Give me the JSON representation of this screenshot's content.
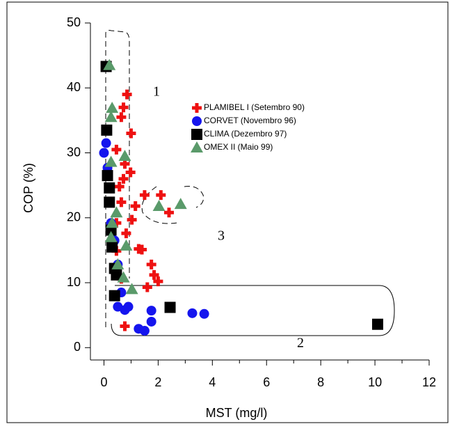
{
  "chart_data": {
    "type": "scatter",
    "xlabel": "MST (mg/l)",
    "ylabel": "COP (%)",
    "xlim": [
      -0.5,
      12
    ],
    "ylim": [
      -1.9,
      50
    ],
    "xticks": [
      0,
      2,
      4,
      6,
      8,
      10,
      12
    ],
    "xminorticks": [
      1,
      3,
      5,
      7,
      9,
      11
    ],
    "yticks": [
      0,
      10,
      20,
      30,
      40,
      50
    ],
    "annotations": [
      "1",
      "2",
      "3"
    ],
    "series": [
      {
        "name": "PLAMIBEL I (Setembro 90)",
        "color": "#ee1111",
        "marker": "plus",
        "x": [
          0.85,
          0.72,
          0.64,
          1.0,
          0.46,
          0.77,
          0.98,
          0.72,
          0.57,
          1.5,
          2.1,
          2.4,
          1.16,
          0.64,
          1.03,
          0.46,
          0.82,
          1.28,
          1.4,
          0.46,
          1.75,
          1.85,
          2.0,
          1.6,
          0.77,
          0.64
        ],
        "values": [
          39,
          37,
          35.5,
          33,
          30.5,
          28.3,
          27,
          26,
          24.8,
          23.5,
          23.5,
          20.8,
          21.8,
          22.4,
          19.7,
          19.2,
          17.6,
          15.2,
          15.1,
          14.9,
          12.8,
          11.2,
          10.2,
          9.3,
          3.3,
          10.6
        ]
      },
      {
        "name": "CORVET (Novembro 96)",
        "color": "#1515ee",
        "marker": "circle",
        "x": [
          0.08,
          0,
          0.13,
          0.26,
          0.39,
          0.51,
          0.64,
          0.51,
          0.77,
          1.75,
          1.75,
          1.28,
          1.5,
          3.26,
          3.7,
          0.9
        ],
        "values": [
          31.5,
          30,
          27.7,
          19.2,
          16.5,
          12.8,
          8.5,
          6.3,
          5.8,
          5.7,
          4,
          2.9,
          2.6,
          5.3,
          5.2,
          6.3
        ]
      },
      {
        "name": "CLIMA (Dezembro 97)",
        "color": "#000000",
        "marker": "square",
        "x": [
          0.08,
          0.1,
          0.13,
          0.2,
          0.2,
          0.26,
          0.3,
          0.39,
          0.46,
          0.39,
          2.44,
          10.1
        ],
        "values": [
          43.3,
          33.5,
          26.5,
          24.6,
          22.4,
          18.1,
          15.5,
          12.2,
          11.2,
          8,
          6.2,
          3.6
        ]
      },
      {
        "name": "OMEX II (Maio 99)",
        "color": "#5a9a6a",
        "marker": "triangle",
        "x": [
          0.2,
          0.3,
          0.26,
          0.77,
          0.26,
          0.46,
          0.3,
          0.26,
          0.82,
          0.51,
          0.72,
          1.03,
          2.03,
          2.83
        ],
        "values": [
          43.5,
          36.9,
          35.5,
          29.5,
          28.6,
          20.8,
          19.2,
          17,
          15.7,
          12.8,
          10.8,
          9,
          21.8,
          22.1
        ]
      }
    ]
  }
}
